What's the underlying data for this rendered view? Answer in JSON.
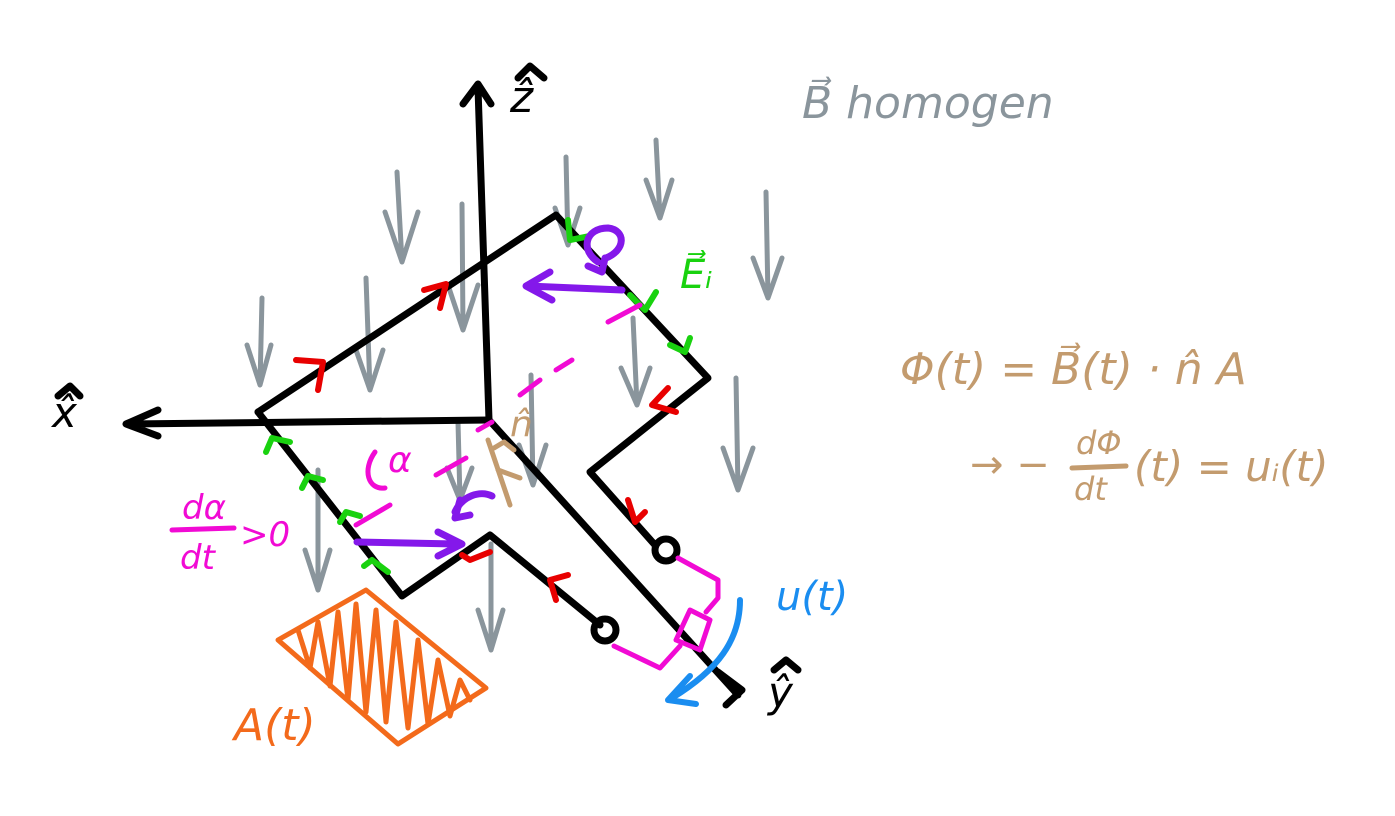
{
  "labels": {
    "axis_z": "ẑ",
    "axis_x": "x̂",
    "axis_y": "ŷ",
    "field": "B⃗ homogen",
    "induced_field": "E⃗ᵢ",
    "normal": "n̂",
    "angle": "α",
    "dalpha": "dα",
    "dt": "dt",
    "gt_zero": ">0",
    "voltage": "u(t)",
    "area": "A(t)",
    "flux_eq": "Φ(t) = B⃗(t) · n̂ A",
    "induction_prefix": "→ −",
    "dphi": "dΦ",
    "induction_rhs": "(t) = uᵢ(t)"
  },
  "colors": {
    "frame": "#000000",
    "field_arrows": "#8a959c",
    "current_arrows": "#e80000",
    "induced_field": "#19d20f",
    "angle_magenta": "#f10ad4",
    "rotation_purple": "#8418ea",
    "normal_tan": "#c39b6e",
    "area_orange": "#f36a1b",
    "voltage_blue": "#1a8df0"
  },
  "icons": {
    "field_arrow": "down-arrow-icon",
    "current_arrow": "chevron-icon",
    "terminal": "terminal-circle-icon",
    "rotation": "curved-arrow-icon"
  }
}
